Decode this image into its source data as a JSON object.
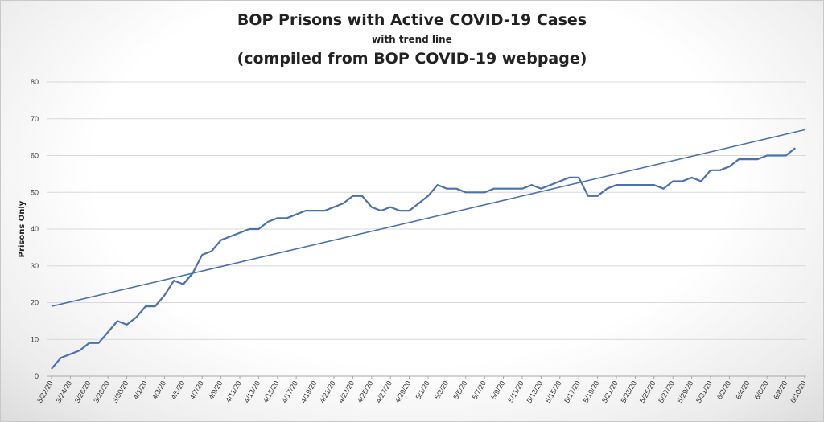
{
  "chart_data": {
    "type": "line",
    "title": "BOP Prisons with Active COVID-19 Cases",
    "subtitle": "with trend line",
    "title2": "(compiled from BOP COVID-19 webpage)",
    "xlabel": "",
    "ylabel": "Prisons Only",
    "ylim": [
      0,
      80
    ],
    "yticks": [
      0,
      10,
      20,
      30,
      40,
      50,
      60,
      70,
      80
    ],
    "grid": true,
    "legend": "none",
    "x_tick_labels": [
      "3/22/20",
      "3/24/20",
      "3/26/20",
      "3/28/20",
      "3/30/20",
      "4/1/20",
      "4/3/20",
      "4/5/20",
      "4/7/20",
      "4/9/20",
      "4/11/20",
      "4/13/20",
      "4/15/20",
      "4/17/20",
      "4/19/20",
      "4/21/20",
      "4/23/20",
      "4/25/20",
      "4/27/20",
      "4/29/20",
      "5/1/20",
      "5/3/20",
      "5/5/20",
      "5/7/20",
      "5/9/20",
      "5/11/20",
      "5/13/20",
      "5/15/20",
      "5/17/20",
      "5/19/20",
      "5/21/20",
      "5/23/20",
      "5/25/20",
      "5/27/20",
      "5/29/20",
      "5/31/20",
      "6/2/20",
      "6/4/20",
      "6/6/20",
      "6/8/20",
      "6/10/20"
    ],
    "series": [
      {
        "start_date": "3/22/20",
        "values": [
          2,
          5,
          6,
          7,
          9,
          9,
          12,
          15,
          14,
          16,
          19,
          19,
          22,
          26,
          25,
          28,
          33,
          34,
          37,
          38,
          39,
          40,
          40,
          42,
          43,
          43,
          44,
          45,
          45,
          45,
          46,
          47,
          49,
          49,
          46,
          45,
          46,
          45,
          45,
          47,
          49,
          52,
          51,
          51,
          50,
          50,
          50,
          51,
          51,
          51,
          51,
          52,
          51,
          52,
          53,
          54,
          54,
          49,
          49,
          51,
          52,
          52,
          52,
          52,
          52,
          51,
          53,
          53,
          54,
          53,
          56,
          56,
          57,
          59,
          59,
          59,
          60,
          60,
          60,
          62
        ],
        "color": "#4a72b0"
      },
      {
        "kind": "trend",
        "start_value": 19,
        "end_value": 67,
        "color": "#4a72b0"
      }
    ]
  }
}
